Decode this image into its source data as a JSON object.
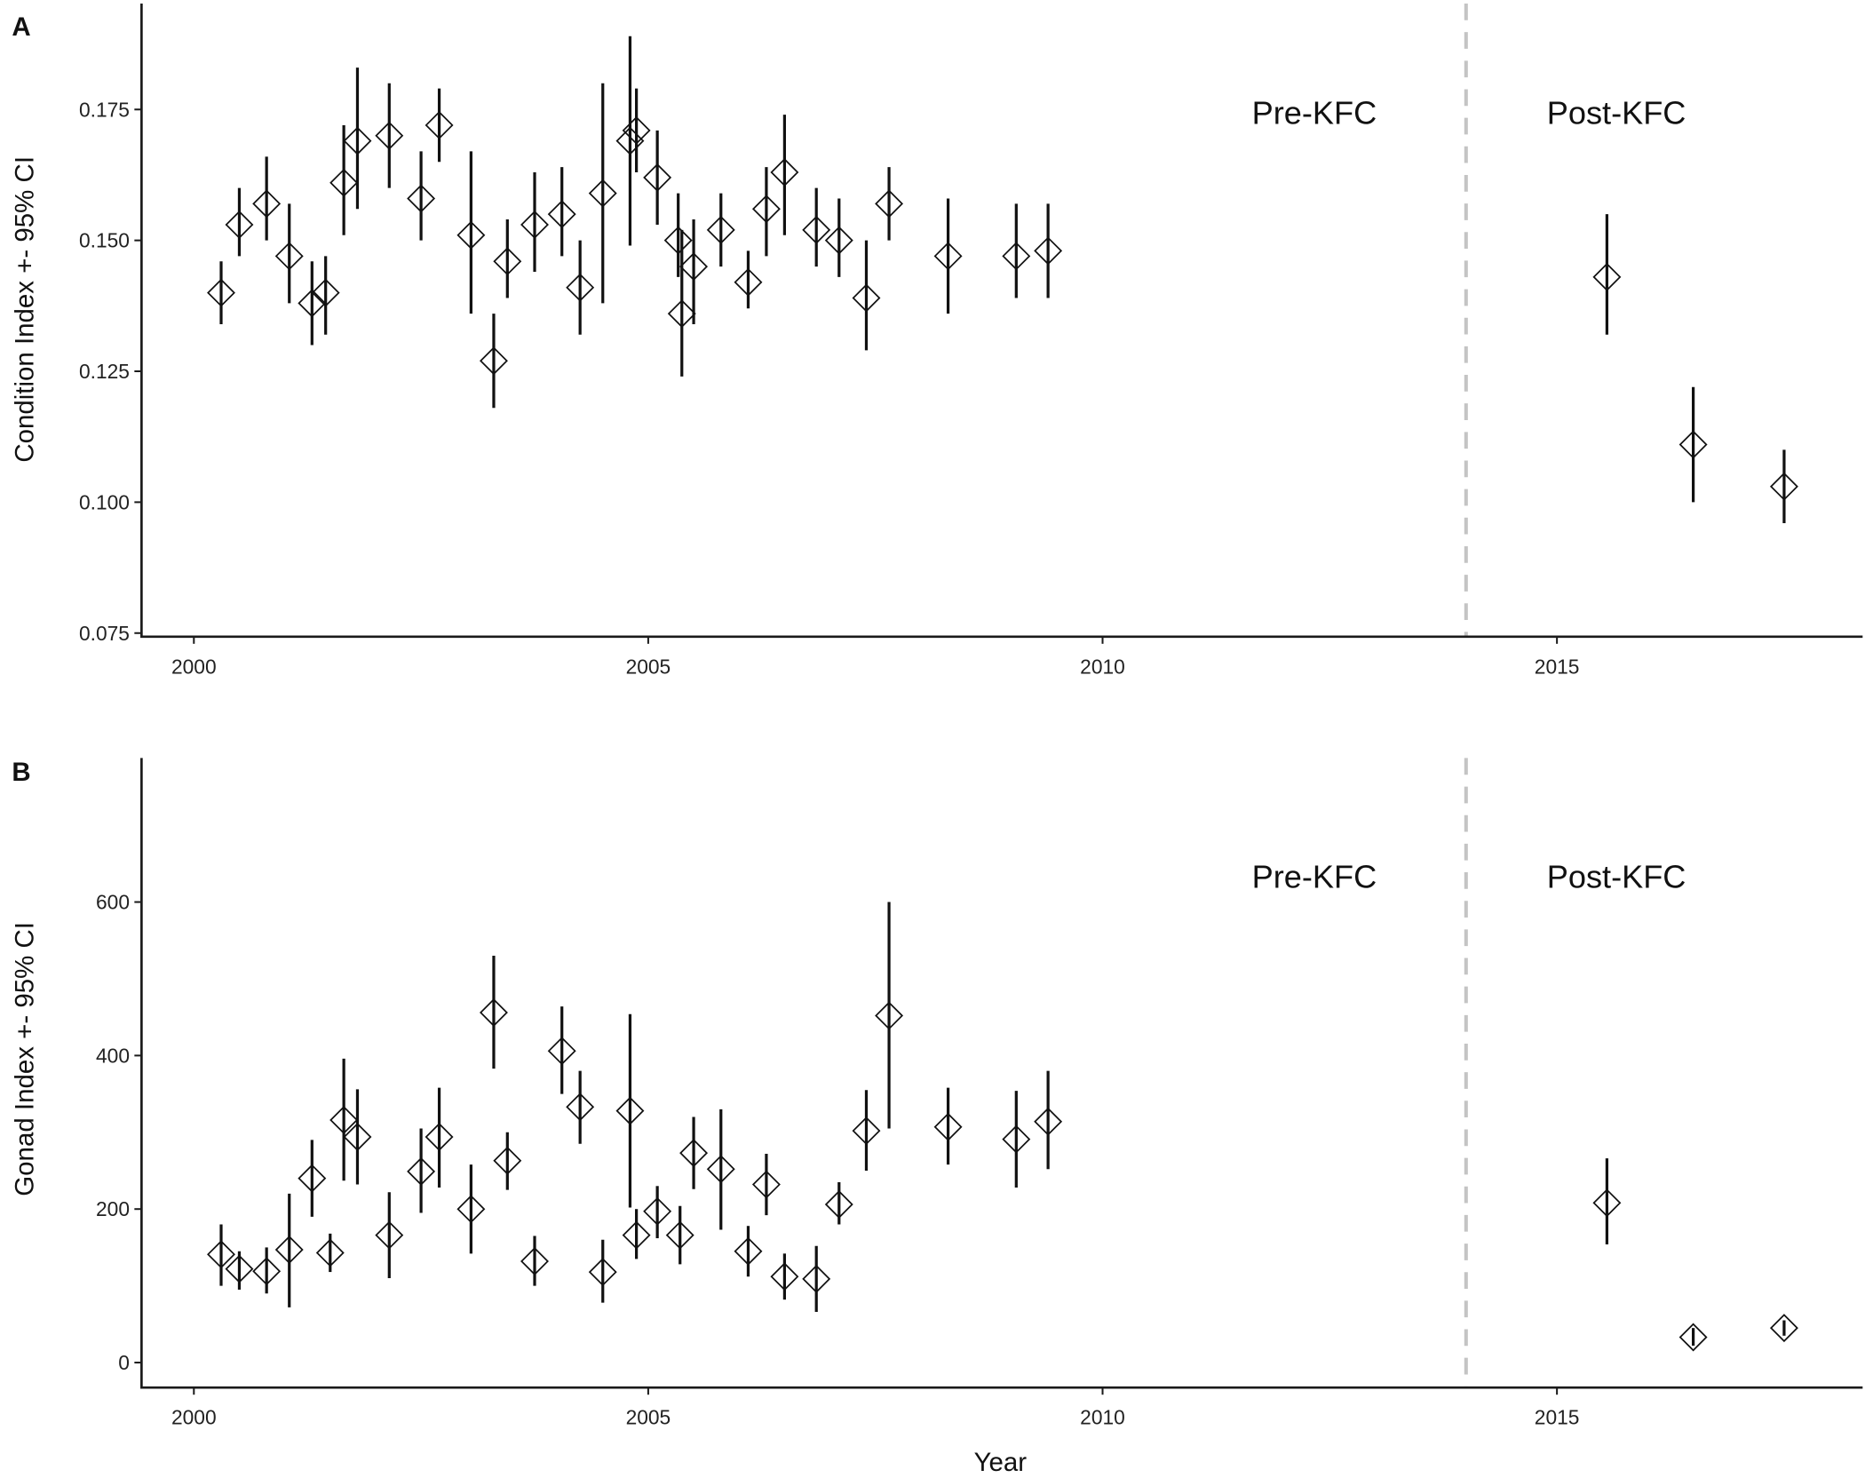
{
  "figure": {
    "x_title": "Year",
    "panels": [
      {
        "letter": "A",
        "ylabel": "Condition Index +- 95% CI",
        "annotation_pre": "Pre-KFC",
        "annotation_post": "Post-KFC"
      },
      {
        "letter": "B",
        "ylabel": "Gonad Index +- 95% CI",
        "annotation_pre": "Pre-KFC",
        "annotation_post": "Post-KFC"
      }
    ],
    "kfc_line_year": 2014,
    "dashed_line_color": "#c4c4c4"
  },
  "chart_data": [
    {
      "type": "scatter",
      "panel": "A",
      "title": "",
      "xlabel": "",
      "ylabel": "Condition Index +- 95% CI",
      "xlim": [
        1999.4,
        2018.4
      ],
      "ylim": [
        0.075,
        0.19
      ],
      "xticks": [
        2000,
        2005,
        2010,
        2015
      ],
      "yticks": [
        0.075,
        0.1,
        0.125,
        0.15,
        0.175
      ],
      "ytick_labels": [
        "0.075",
        "0.100",
        "0.125",
        "0.150",
        "0.175"
      ],
      "grid": false,
      "marker": "open-diamond",
      "error_bars": "95% CI",
      "annotations": [
        {
          "text": "Pre-KFC",
          "x": 2012.3
        },
        {
          "text": "Post-KFC",
          "x": 2015.6
        }
      ],
      "vertical_line": {
        "x": 2014,
        "style": "dashed",
        "color": "#c4c4c4"
      },
      "points": [
        {
          "x": 2000.3,
          "y": 0.14,
          "lo": 0.134,
          "hi": 0.146
        },
        {
          "x": 2000.5,
          "y": 0.153,
          "lo": 0.147,
          "hi": 0.16
        },
        {
          "x": 2000.8,
          "y": 0.157,
          "lo": 0.15,
          "hi": 0.166
        },
        {
          "x": 2001.05,
          "y": 0.147,
          "lo": 0.138,
          "hi": 0.157
        },
        {
          "x": 2001.3,
          "y": 0.138,
          "lo": 0.13,
          "hi": 0.146
        },
        {
          "x": 2001.45,
          "y": 0.14,
          "lo": 0.132,
          "hi": 0.147
        },
        {
          "x": 2001.65,
          "y": 0.161,
          "lo": 0.151,
          "hi": 0.172
        },
        {
          "x": 2001.8,
          "y": 0.169,
          "lo": 0.156,
          "hi": 0.183
        },
        {
          "x": 2002.15,
          "y": 0.17,
          "lo": 0.16,
          "hi": 0.18
        },
        {
          "x": 2002.5,
          "y": 0.158,
          "lo": 0.15,
          "hi": 0.167
        },
        {
          "x": 2002.7,
          "y": 0.172,
          "lo": 0.165,
          "hi": 0.179
        },
        {
          "x": 2003.05,
          "y": 0.151,
          "lo": 0.136,
          "hi": 0.167
        },
        {
          "x": 2003.3,
          "y": 0.127,
          "lo": 0.118,
          "hi": 0.136
        },
        {
          "x": 2003.45,
          "y": 0.146,
          "lo": 0.139,
          "hi": 0.154
        },
        {
          "x": 2003.75,
          "y": 0.153,
          "lo": 0.144,
          "hi": 0.163
        },
        {
          "x": 2004.05,
          "y": 0.155,
          "lo": 0.147,
          "hi": 0.164
        },
        {
          "x": 2004.25,
          "y": 0.141,
          "lo": 0.132,
          "hi": 0.15
        },
        {
          "x": 2004.5,
          "y": 0.159,
          "lo": 0.138,
          "hi": 0.18
        },
        {
          "x": 2004.8,
          "y": 0.169,
          "lo": 0.149,
          "hi": 0.189
        },
        {
          "x": 2004.87,
          "y": 0.171,
          "lo": 0.163,
          "hi": 0.179
        },
        {
          "x": 2005.1,
          "y": 0.162,
          "lo": 0.153,
          "hi": 0.171
        },
        {
          "x": 2005.33,
          "y": 0.15,
          "lo": 0.143,
          "hi": 0.159
        },
        {
          "x": 2005.37,
          "y": 0.136,
          "lo": 0.124,
          "hi": 0.152
        },
        {
          "x": 2005.5,
          "y": 0.145,
          "lo": 0.134,
          "hi": 0.154
        },
        {
          "x": 2005.8,
          "y": 0.152,
          "lo": 0.145,
          "hi": 0.159
        },
        {
          "x": 2006.1,
          "y": 0.142,
          "lo": 0.137,
          "hi": 0.148
        },
        {
          "x": 2006.3,
          "y": 0.156,
          "lo": 0.147,
          "hi": 0.164
        },
        {
          "x": 2006.5,
          "y": 0.163,
          "lo": 0.151,
          "hi": 0.174
        },
        {
          "x": 2006.85,
          "y": 0.152,
          "lo": 0.145,
          "hi": 0.16
        },
        {
          "x": 2007.1,
          "y": 0.15,
          "lo": 0.143,
          "hi": 0.158
        },
        {
          "x": 2007.4,
          "y": 0.139,
          "lo": 0.129,
          "hi": 0.15
        },
        {
          "x": 2007.65,
          "y": 0.157,
          "lo": 0.15,
          "hi": 0.164
        },
        {
          "x": 2008.3,
          "y": 0.147,
          "lo": 0.136,
          "hi": 0.158
        },
        {
          "x": 2009.05,
          "y": 0.147,
          "lo": 0.139,
          "hi": 0.157
        },
        {
          "x": 2009.4,
          "y": 0.148,
          "lo": 0.139,
          "hi": 0.157
        },
        {
          "x": 2015.55,
          "y": 0.143,
          "lo": 0.132,
          "hi": 0.155
        },
        {
          "x": 2016.5,
          "y": 0.111,
          "lo": 0.1,
          "hi": 0.122
        },
        {
          "x": 2017.5,
          "y": 0.103,
          "lo": 0.096,
          "hi": 0.11
        }
      ]
    },
    {
      "type": "scatter",
      "panel": "B",
      "title": "",
      "xlabel": "Year",
      "ylabel": "Gonad Index +- 95% CI",
      "xlim": [
        1999.4,
        2018.4
      ],
      "ylim": [
        -32,
        785
      ],
      "xticks": [
        2000,
        2005,
        2010,
        2015
      ],
      "yticks": [
        0,
        200,
        400,
        600
      ],
      "ytick_labels": [
        "0",
        "200",
        "400",
        "600"
      ],
      "grid": false,
      "marker": "open-diamond",
      "error_bars": "95% CI",
      "annotations": [
        {
          "text": "Pre-KFC",
          "x": 2012.3
        },
        {
          "text": "Post-KFC",
          "x": 2015.6
        }
      ],
      "vertical_line": {
        "x": 2014,
        "style": "dashed",
        "color": "#c4c4c4"
      },
      "points": [
        {
          "x": 2000.3,
          "y": 141,
          "lo": 100,
          "hi": 180
        },
        {
          "x": 2000.5,
          "y": 122,
          "lo": 95,
          "hi": 145
        },
        {
          "x": 2000.8,
          "y": 119,
          "lo": 90,
          "hi": 150
        },
        {
          "x": 2001.05,
          "y": 147,
          "lo": 72,
          "hi": 220
        },
        {
          "x": 2001.3,
          "y": 240,
          "lo": 190,
          "hi": 290
        },
        {
          "x": 2001.5,
          "y": 143,
          "lo": 118,
          "hi": 168
        },
        {
          "x": 2001.65,
          "y": 316,
          "lo": 237,
          "hi": 396
        },
        {
          "x": 2001.8,
          "y": 294,
          "lo": 232,
          "hi": 356
        },
        {
          "x": 2002.15,
          "y": 166,
          "lo": 110,
          "hi": 222
        },
        {
          "x": 2002.5,
          "y": 249,
          "lo": 195,
          "hi": 305
        },
        {
          "x": 2002.7,
          "y": 294,
          "lo": 228,
          "hi": 358
        },
        {
          "x": 2003.05,
          "y": 200,
          "lo": 142,
          "hi": 258
        },
        {
          "x": 2003.3,
          "y": 456,
          "lo": 383,
          "hi": 530
        },
        {
          "x": 2003.45,
          "y": 263,
          "lo": 225,
          "hi": 300
        },
        {
          "x": 2003.75,
          "y": 132,
          "lo": 100,
          "hi": 165
        },
        {
          "x": 2004.05,
          "y": 406,
          "lo": 350,
          "hi": 464
        },
        {
          "x": 2004.25,
          "y": 333,
          "lo": 285,
          "hi": 380
        },
        {
          "x": 2004.5,
          "y": 118,
          "lo": 78,
          "hi": 160
        },
        {
          "x": 2004.8,
          "y": 328,
          "lo": 202,
          "hi": 454
        },
        {
          "x": 2004.87,
          "y": 166,
          "lo": 135,
          "hi": 200
        },
        {
          "x": 2005.1,
          "y": 197,
          "lo": 162,
          "hi": 230
        },
        {
          "x": 2005.35,
          "y": 166,
          "lo": 128,
          "hi": 204
        },
        {
          "x": 2005.5,
          "y": 273,
          "lo": 226,
          "hi": 320
        },
        {
          "x": 2005.8,
          "y": 252,
          "lo": 173,
          "hi": 330
        },
        {
          "x": 2006.1,
          "y": 145,
          "lo": 112,
          "hi": 178
        },
        {
          "x": 2006.3,
          "y": 232,
          "lo": 192,
          "hi": 272
        },
        {
          "x": 2006.5,
          "y": 112,
          "lo": 82,
          "hi": 142
        },
        {
          "x": 2006.85,
          "y": 109,
          "lo": 66,
          "hi": 152
        },
        {
          "x": 2007.1,
          "y": 206,
          "lo": 180,
          "hi": 235
        },
        {
          "x": 2007.4,
          "y": 302,
          "lo": 250,
          "hi": 355
        },
        {
          "x": 2007.65,
          "y": 452,
          "lo": 305,
          "hi": 600
        },
        {
          "x": 2008.3,
          "y": 307,
          "lo": 258,
          "hi": 358
        },
        {
          "x": 2009.05,
          "y": 291,
          "lo": 228,
          "hi": 354
        },
        {
          "x": 2009.4,
          "y": 314,
          "lo": 252,
          "hi": 380
        },
        {
          "x": 2015.55,
          "y": 208,
          "lo": 154,
          "hi": 266
        },
        {
          "x": 2016.5,
          "y": 33,
          "lo": 22,
          "hi": 45
        },
        {
          "x": 2017.5,
          "y": 45,
          "lo": 35,
          "hi": 55
        }
      ]
    }
  ]
}
